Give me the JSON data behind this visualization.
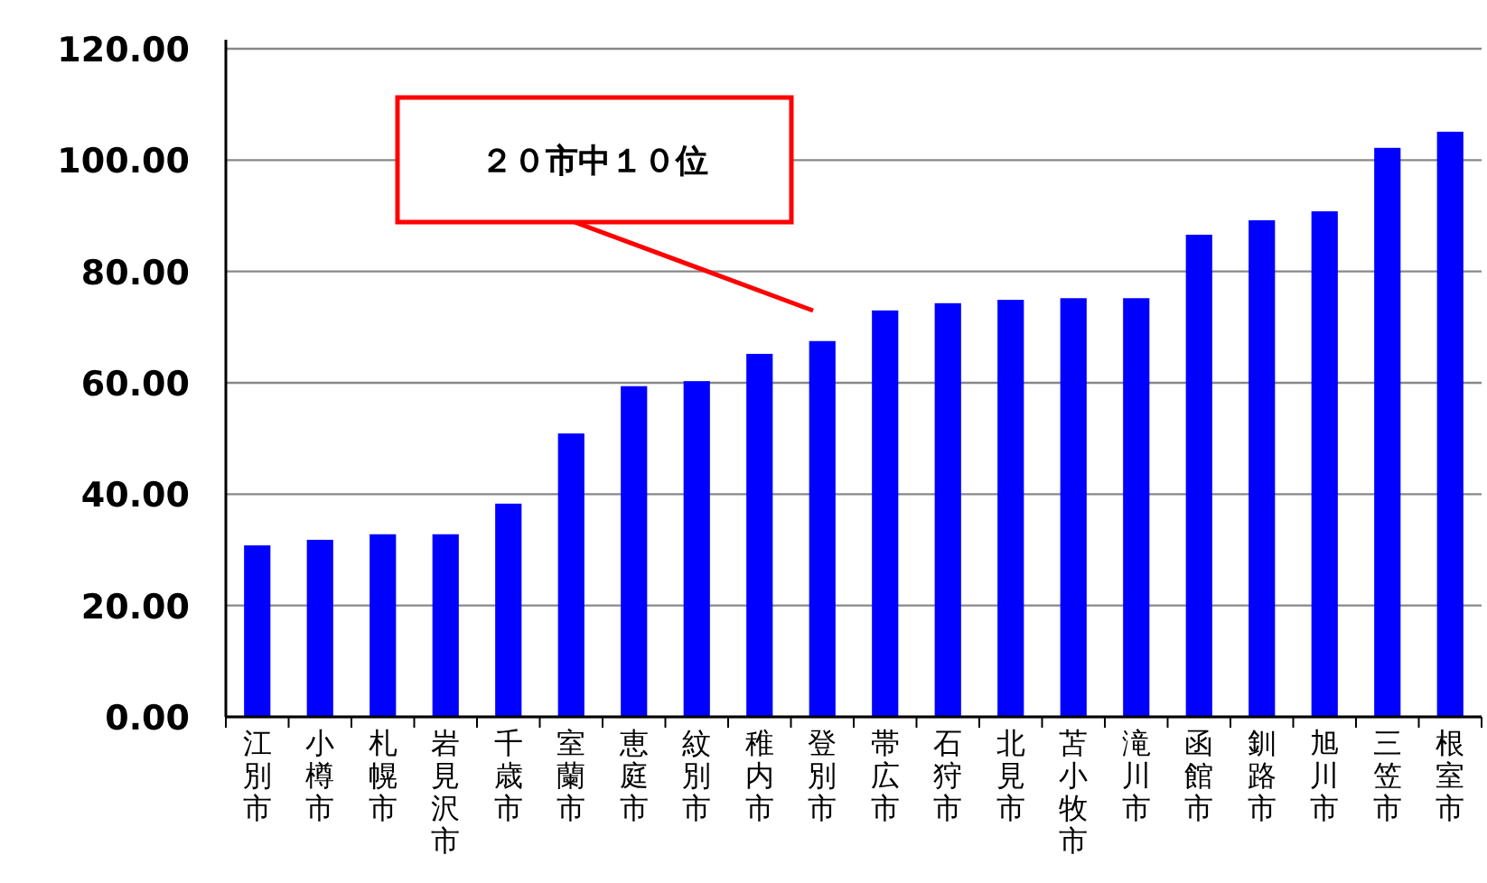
{
  "chart_data": {
    "type": "bar",
    "categories": [
      "江別市",
      "小樽市",
      "札幌市",
      "岩見沢市",
      "千歳市",
      "室蘭市",
      "恵庭市",
      "紋別市",
      "稚内市",
      "登別市",
      "帯広市",
      "石狩市",
      "北見市",
      "苫小牧市",
      "滝川市",
      "函館市",
      "釧路市",
      "旭川市",
      "三笠市",
      "根室市"
    ],
    "values": [
      30.8,
      31.8,
      32.8,
      32.8,
      38.3,
      50.9,
      59.4,
      60.3,
      65.2,
      67.5,
      73.0,
      74.3,
      74.9,
      75.2,
      75.2,
      86.6,
      89.2,
      90.8,
      102.2,
      105.1
    ],
    "color": "#0000ff",
    "ylim": [
      0,
      120
    ],
    "yticks": [
      {
        "value": 0,
        "label": "0.00"
      },
      {
        "value": 20,
        "label": "20.00"
      },
      {
        "value": 40,
        "label": "40.00"
      },
      {
        "value": 60,
        "label": "60.00"
      },
      {
        "value": 80,
        "label": "80.00"
      },
      {
        "value": 100,
        "label": "100.00"
      },
      {
        "value": 120,
        "label": "120.00"
      }
    ],
    "grid": "y",
    "annotations": [
      "２０市中１０位"
    ]
  }
}
